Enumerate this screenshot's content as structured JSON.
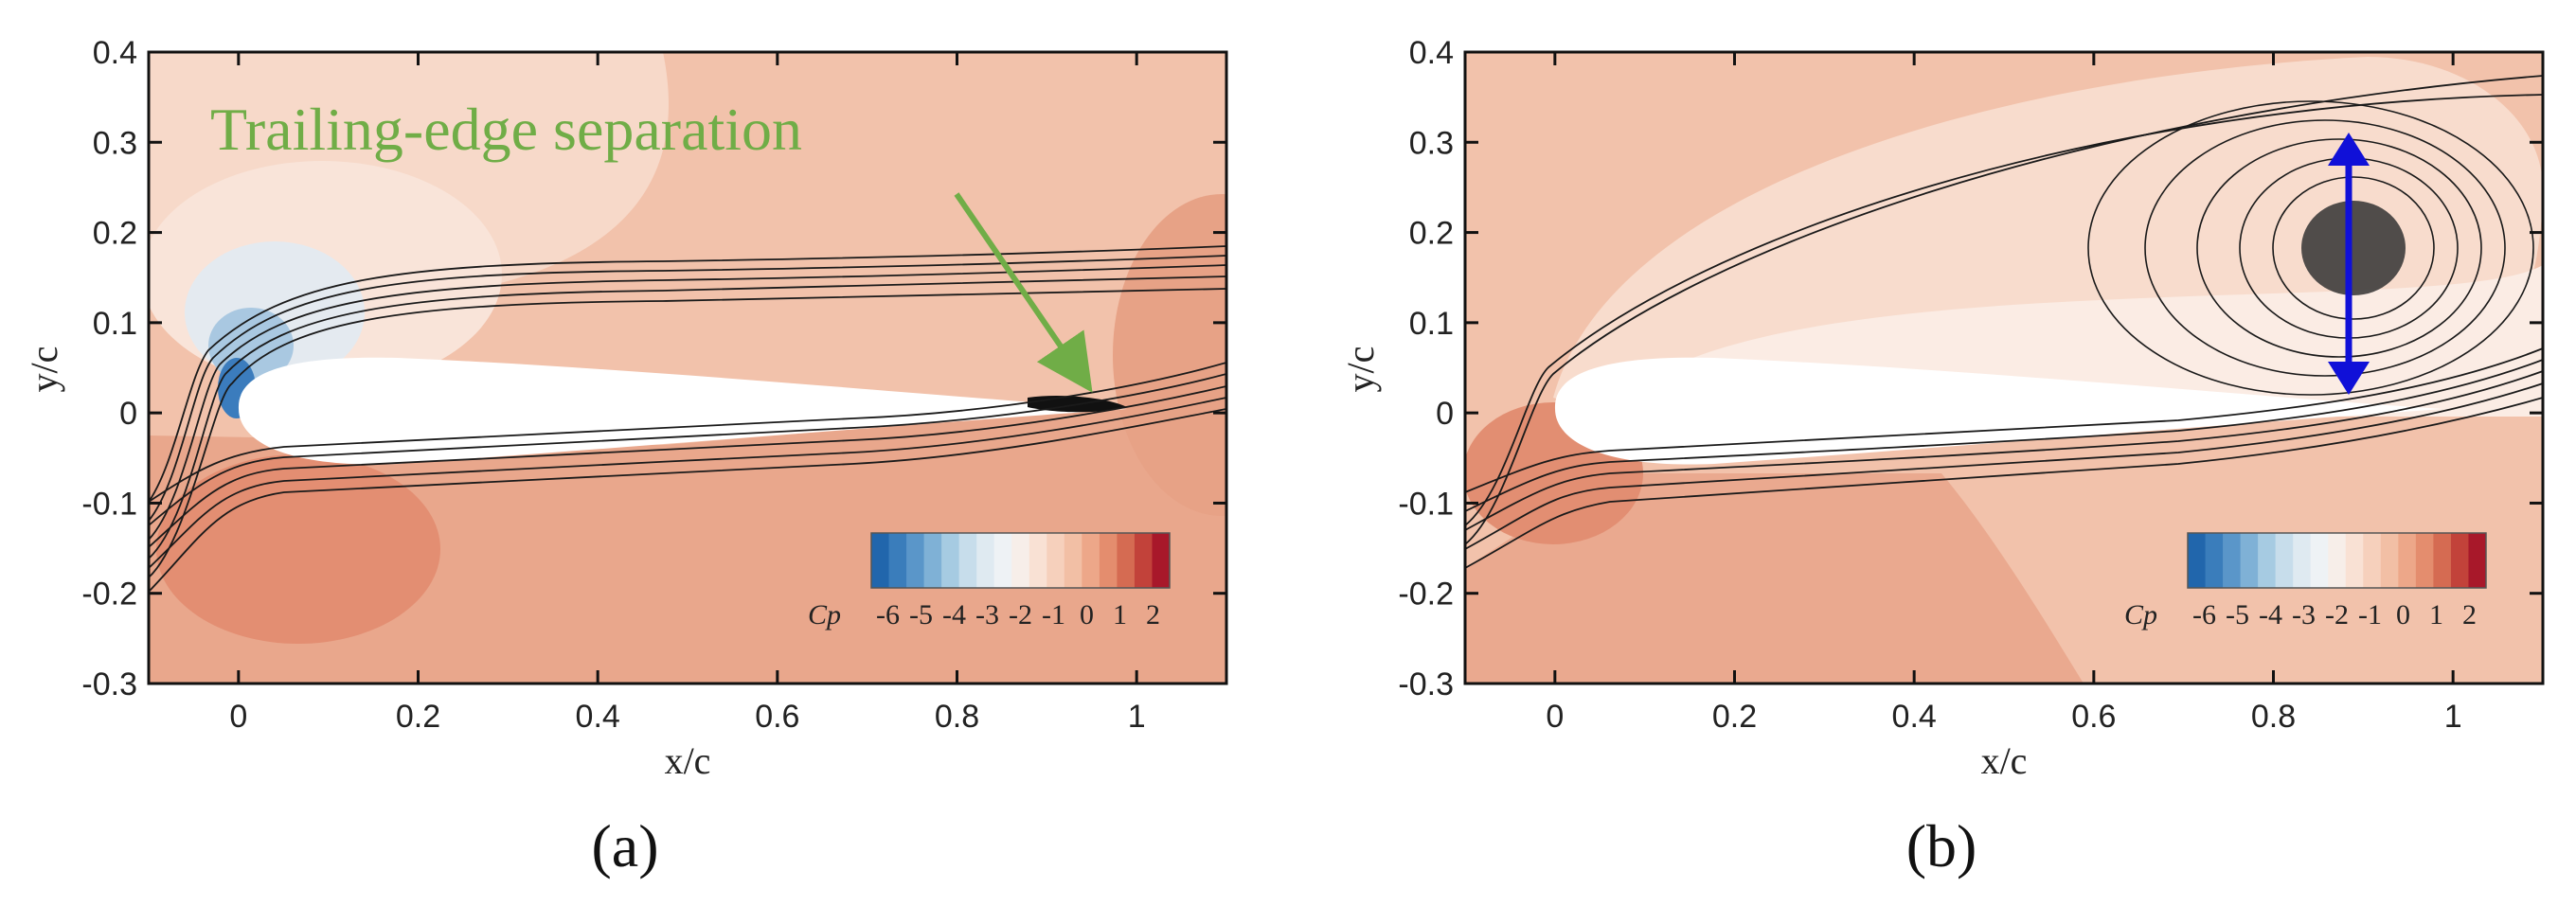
{
  "figure": {
    "panels": [
      "(a)",
      "(b)"
    ],
    "colors": {
      "freestream": "#f2c2ab",
      "high_pressure": "#e79c7f",
      "stagnation": "#de8366",
      "light_zone": "#f8dccd",
      "very_light_zone": "#fbece4",
      "suction_blue": "#2f6fb3",
      "annotation_green": "#70ad47",
      "marker_blue": "#1010d8",
      "streamline": "#1a1a1a"
    }
  },
  "chart_data": [
    {
      "type": "heatmap",
      "panel_label": "(a)",
      "xlabel": "x/c",
      "ylabel": "y/c",
      "xlim": [
        -0.1,
        1.1
      ],
      "ylim": [
        -0.3,
        0.4
      ],
      "x_ticks": [
        0,
        0.2,
        0.4,
        0.6,
        0.8,
        1
      ],
      "x_tick_labels": [
        "0",
        "0.2",
        "0.4",
        "0.6",
        "0.8",
        "1"
      ],
      "y_ticks": [
        -0.3,
        -0.2,
        -0.1,
        0,
        0.1,
        0.2,
        0.3,
        0.4
      ],
      "y_tick_labels": [
        "-0.3",
        "-0.2",
        "-0.1",
        "0",
        "0.1",
        "0.2",
        "0.3",
        "0.4"
      ],
      "colorbar": {
        "title": "Cp",
        "tick_labels": [
          "-6",
          "-5",
          "-4",
          "-3",
          "-2",
          "-1",
          "0",
          "1",
          "2"
        ],
        "range": [
          -6.5,
          2.5
        ],
        "colors": [
          "#2166ac",
          "#3a7dbb",
          "#5a96c9",
          "#7fb1d6",
          "#a6cbe2",
          "#c7ddeb",
          "#dfeaf1",
          "#eef2f5",
          "#f7eee9",
          "#f9e1d4",
          "#f6d0bc",
          "#f2bfa5",
          "#eda789",
          "#e48d6e",
          "#d56b52",
          "#c2423a",
          "#a8182a"
        ]
      },
      "annotation": {
        "text": "Trailing-edge separation",
        "target": [
          0.96,
          0.025
        ]
      }
    },
    {
      "type": "heatmap",
      "panel_label": "(b)",
      "xlabel": "x/c",
      "ylabel": "y/c",
      "xlim": [
        -0.1,
        1.1
      ],
      "ylim": [
        -0.3,
        0.4
      ],
      "x_ticks": [
        0,
        0.2,
        0.4,
        0.6,
        0.8,
        1
      ],
      "x_tick_labels": [
        "0",
        "0.2",
        "0.4",
        "0.6",
        "0.8",
        "1"
      ],
      "y_ticks": [
        -0.3,
        -0.2,
        -0.1,
        0,
        0.1,
        0.2,
        0.3,
        0.4
      ],
      "y_tick_labels": [
        "-0.3",
        "-0.2",
        "-0.1",
        "0",
        "0.1",
        "0.2",
        "0.3",
        "0.4"
      ],
      "colorbar": {
        "title": "Cp",
        "tick_labels": [
          "-6",
          "-5",
          "-4",
          "-3",
          "-2",
          "-1",
          "0",
          "1",
          "2"
        ],
        "range": [
          -6.5,
          2.5
        ],
        "colors": [
          "#2166ac",
          "#3a7dbb",
          "#5a96c9",
          "#7fb1d6",
          "#a6cbe2",
          "#c7ddeb",
          "#dfeaf1",
          "#eef2f5",
          "#f7eee9",
          "#f9e1d4",
          "#f6d0bc",
          "#f2bfa5",
          "#eda789",
          "#e48d6e",
          "#d56b52",
          "#c2423a",
          "#a8182a"
        ]
      },
      "vortex_center": [
        0.86,
        0.18
      ],
      "vortex_height_marker": [
        0.03,
        0.33
      ]
    }
  ]
}
